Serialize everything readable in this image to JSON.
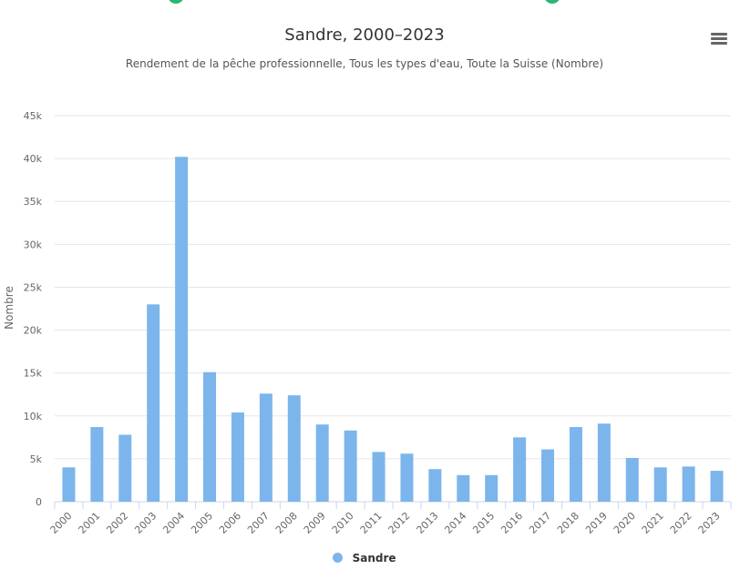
{
  "colors": {
    "bar": "#7cb5ec",
    "grid": "#e6e6e6",
    "axis_text": "#666666",
    "top_deco": "#2bb673"
  },
  "chart_data": {
    "type": "bar",
    "title": "Sandre, 2000–2023",
    "subtitle": "Rendement de la pêche professionnelle, Tous les types d'eau, Toute la Suisse (Nombre)",
    "xlabel": "",
    "ylabel": "Nombre",
    "ylim": [
      0,
      45000
    ],
    "yticks": [
      0,
      5000,
      10000,
      15000,
      20000,
      25000,
      30000,
      35000,
      40000,
      45000
    ],
    "ytick_labels": [
      "0",
      "5k",
      "10k",
      "15k",
      "20k",
      "25k",
      "30k",
      "35k",
      "40k",
      "45k"
    ],
    "grid": true,
    "legend_position": "bottom-center",
    "categories": [
      "2000",
      "2001",
      "2002",
      "2003",
      "2004",
      "2005",
      "2006",
      "2007",
      "2008",
      "2009",
      "2010",
      "2011",
      "2012",
      "2013",
      "2014",
      "2015",
      "2016",
      "2017",
      "2018",
      "2019",
      "2020",
      "2021",
      "2022",
      "2023"
    ],
    "series": [
      {
        "name": "Sandre",
        "values": [
          4000,
          8700,
          7800,
          23000,
          40200,
          15100,
          10400,
          12600,
          12400,
          9000,
          8300,
          5800,
          5600,
          3800,
          3100,
          3100,
          7500,
          6100,
          8700,
          9100,
          5100,
          4000,
          4100,
          3600
        ]
      }
    ]
  }
}
